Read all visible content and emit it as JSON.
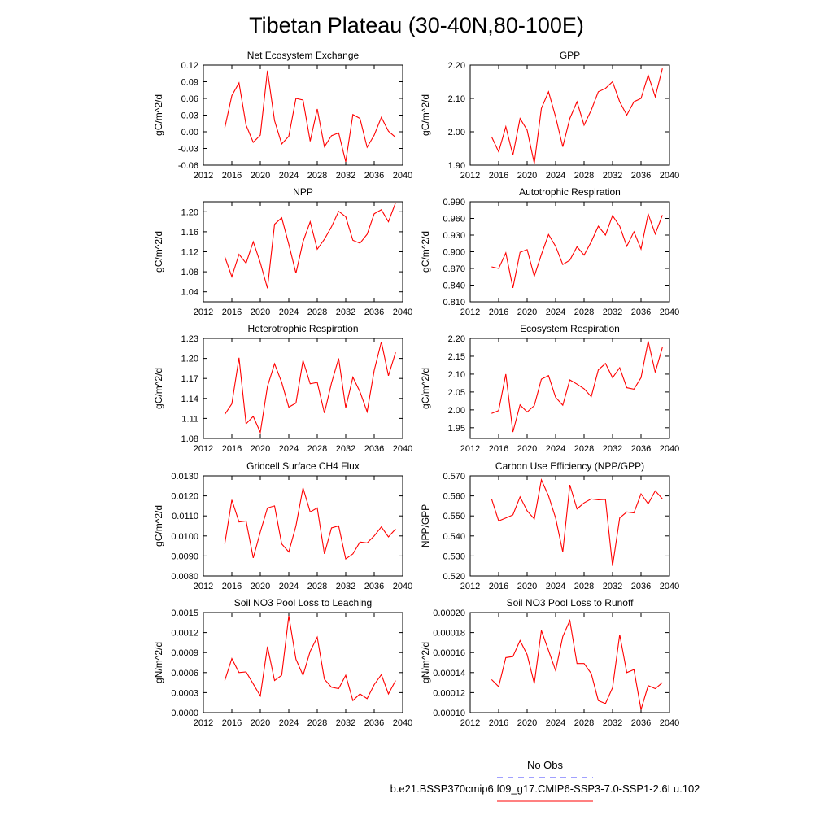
{
  "figure": {
    "title": "Tibetan Plateau (30-40N,80-100E)",
    "legend": [
      {
        "label": "No Obs",
        "style": "dashed",
        "color": "#4040ff"
      },
      {
        "label": "b.e21.BSSP370cmip6.f09_g17.CMIP6-SSP3-7.0-SSP1-2.6Lu.102",
        "style": "solid",
        "color": "#ff0000"
      }
    ]
  },
  "chart_data": [
    {
      "type": "line",
      "title": "Net Ecosystem Exchange",
      "ylabel": "gC/m^2/d",
      "xlim": [
        2012,
        2040
      ],
      "xticks": [
        "2012",
        "2016",
        "2020",
        "2024",
        "2028",
        "2032",
        "2036",
        "2040"
      ],
      "ylim": [
        -0.06,
        0.12
      ],
      "yticks": [
        "-0.06",
        "-0.03",
        "0.00",
        "0.03",
        "0.06",
        "0.09",
        "0.12"
      ],
      "series": [
        {
          "color": "#ff0000",
          "x": [
            2015,
            2016,
            2017,
            2018,
            2019,
            2020,
            2021,
            2022,
            2023,
            2024,
            2025,
            2026,
            2027,
            2028,
            2029,
            2030,
            2031,
            2032,
            2033,
            2034,
            2035,
            2036,
            2037,
            2038,
            2039
          ],
          "values": [
            0.007,
            0.065,
            0.088,
            0.012,
            -0.019,
            -0.006,
            0.11,
            0.02,
            -0.022,
            -0.008,
            0.06,
            0.057,
            -0.017,
            0.041,
            -0.027,
            -0.007,
            -0.002,
            -0.054,
            0.031,
            0.024,
            -0.028,
            -0.006,
            0.026,
            0.001,
            -0.01
          ]
        }
      ]
    },
    {
      "type": "line",
      "title": "GPP",
      "ylabel": "gC/m^2/d",
      "xlim": [
        2012,
        2040
      ],
      "xticks": [
        "2012",
        "2016",
        "2020",
        "2024",
        "2028",
        "2032",
        "2036",
        "2040"
      ],
      "ylim": [
        1.9,
        2.2
      ],
      "yticks": [
        "1.90",
        "2.00",
        "2.10",
        "2.20"
      ],
      "series": [
        {
          "color": "#ff0000",
          "x": [
            2015,
            2016,
            2017,
            2018,
            2019,
            2020,
            2021,
            2022,
            2023,
            2024,
            2025,
            2026,
            2027,
            2028,
            2029,
            2030,
            2031,
            2032,
            2033,
            2034,
            2035,
            2036,
            2037,
            2038,
            2039
          ],
          "values": [
            1.985,
            1.94,
            2.015,
            1.93,
            2.04,
            2.005,
            1.905,
            2.07,
            2.12,
            2.045,
            1.955,
            2.04,
            2.09,
            2.02,
            2.065,
            2.12,
            2.13,
            2.15,
            2.09,
            2.05,
            2.09,
            2.1,
            2.17,
            2.105,
            2.19
          ]
        }
      ]
    },
    {
      "type": "line",
      "title": "NPP",
      "ylabel": "gC/m^2/d",
      "xlim": [
        2012,
        2040
      ],
      "xticks": [
        "2012",
        "2016",
        "2020",
        "2024",
        "2028",
        "2032",
        "2036",
        "2040"
      ],
      "ylim": [
        1.02,
        1.22
      ],
      "yticks": [
        "1.04",
        "1.08",
        "1.12",
        "1.16",
        "1.20"
      ],
      "series": [
        {
          "color": "#ff0000",
          "x": [
            2015,
            2016,
            2017,
            2018,
            2019,
            2020,
            2021,
            2022,
            2023,
            2024,
            2025,
            2026,
            2027,
            2028,
            2029,
            2030,
            2031,
            2032,
            2033,
            2034,
            2035,
            2036,
            2037,
            2038,
            2039
          ],
          "values": [
            1.11,
            1.07,
            1.115,
            1.097,
            1.14,
            1.098,
            1.047,
            1.175,
            1.188,
            1.135,
            1.077,
            1.14,
            1.18,
            1.125,
            1.145,
            1.17,
            1.201,
            1.19,
            1.143,
            1.137,
            1.155,
            1.196,
            1.204,
            1.18,
            1.218
          ]
        }
      ]
    },
    {
      "type": "line",
      "title": "Autotrophic Respiration",
      "ylabel": "gC/m^2/d",
      "xlim": [
        2012,
        2040
      ],
      "xticks": [
        "2012",
        "2016",
        "2020",
        "2024",
        "2028",
        "2032",
        "2036",
        "2040"
      ],
      "ylim": [
        0.81,
        0.99
      ],
      "yticks": [
        "0.810",
        "0.840",
        "0.870",
        "0.900",
        "0.930",
        "0.960",
        "0.990"
      ],
      "series": [
        {
          "color": "#ff0000",
          "x": [
            2015,
            2016,
            2017,
            2018,
            2019,
            2020,
            2021,
            2022,
            2023,
            2024,
            2025,
            2026,
            2027,
            2028,
            2029,
            2030,
            2031,
            2032,
            2033,
            2034,
            2035,
            2036,
            2037,
            2038,
            2039
          ],
          "values": [
            0.873,
            0.87,
            0.898,
            0.835,
            0.899,
            0.904,
            0.856,
            0.895,
            0.931,
            0.91,
            0.877,
            0.885,
            0.909,
            0.894,
            0.918,
            0.946,
            0.93,
            0.965,
            0.946,
            0.91,
            0.936,
            0.905,
            0.968,
            0.932,
            0.966
          ]
        }
      ]
    },
    {
      "type": "line",
      "title": "Heterotrophic Respiration",
      "ylabel": "gC/m^2/d",
      "xlim": [
        2012,
        2040
      ],
      "xticks": [
        "2012",
        "2016",
        "2020",
        "2024",
        "2028",
        "2032",
        "2036",
        "2040"
      ],
      "ylim": [
        1.08,
        1.23
      ],
      "yticks": [
        "1.08",
        "1.11",
        "1.14",
        "1.17",
        "1.20",
        "1.23"
      ],
      "series": [
        {
          "color": "#ff0000",
          "x": [
            2015,
            2016,
            2017,
            2018,
            2019,
            2020,
            2021,
            2022,
            2023,
            2024,
            2025,
            2026,
            2027,
            2028,
            2029,
            2030,
            2031,
            2032,
            2033,
            2034,
            2035,
            2036,
            2037,
            2038,
            2039
          ],
          "values": [
            1.116,
            1.132,
            1.201,
            1.102,
            1.113,
            1.089,
            1.158,
            1.192,
            1.164,
            1.127,
            1.133,
            1.197,
            1.162,
            1.164,
            1.118,
            1.163,
            1.2,
            1.126,
            1.172,
            1.15,
            1.12,
            1.182,
            1.225,
            1.174,
            1.209
          ]
        }
      ]
    },
    {
      "type": "line",
      "title": "Ecosystem Respiration",
      "ylabel": "gC/m^2/d",
      "xlim": [
        2012,
        2040
      ],
      "xticks": [
        "2012",
        "2016",
        "2020",
        "2024",
        "2028",
        "2032",
        "2036",
        "2040"
      ],
      "ylim": [
        1.92,
        2.2
      ],
      "yticks": [
        "1.95",
        "2.00",
        "2.05",
        "2.10",
        "2.15",
        "2.20"
      ],
      "series": [
        {
          "color": "#ff0000",
          "x": [
            2015,
            2016,
            2017,
            2018,
            2019,
            2020,
            2021,
            2022,
            2023,
            2024,
            2025,
            2026,
            2027,
            2028,
            2029,
            2030,
            2031,
            2032,
            2033,
            2034,
            2035,
            2036,
            2037,
            2038,
            2039
          ],
          "values": [
            1.99,
            1.998,
            2.1,
            1.938,
            2.014,
            1.994,
            2.012,
            2.086,
            2.096,
            2.035,
            2.013,
            2.084,
            2.072,
            2.059,
            2.037,
            2.112,
            2.13,
            2.09,
            2.118,
            2.062,
            2.058,
            2.09,
            2.192,
            2.105,
            2.175
          ]
        }
      ]
    },
    {
      "type": "line",
      "title": "Gridcell Surface CH4 Flux",
      "ylabel": "gC/m^2/d",
      "xlim": [
        2012,
        2040
      ],
      "xticks": [
        "2012",
        "2016",
        "2020",
        "2024",
        "2028",
        "2032",
        "2036",
        "2040"
      ],
      "ylim": [
        0.008,
        0.013
      ],
      "yticks": [
        "0.0080",
        "0.0090",
        "0.0100",
        "0.0110",
        "0.0120",
        "0.0130"
      ],
      "series": [
        {
          "color": "#ff0000",
          "x": [
            2015,
            2016,
            2017,
            2018,
            2019,
            2020,
            2021,
            2022,
            2023,
            2024,
            2025,
            2026,
            2027,
            2028,
            2029,
            2030,
            2031,
            2032,
            2033,
            2034,
            2035,
            2036,
            2037,
            2038,
            2039
          ],
          "values": [
            0.0096,
            0.0118,
            0.0107,
            0.01075,
            0.0089,
            0.0102,
            0.0114,
            0.0115,
            0.0096,
            0.0092,
            0.0105,
            0.0124,
            0.0112,
            0.0114,
            0.0091,
            0.0104,
            0.0105,
            0.00885,
            0.0091,
            0.0097,
            0.00965,
            0.01,
            0.01045,
            0.00995,
            0.01035
          ]
        }
      ]
    },
    {
      "type": "line",
      "title": "Carbon Use Efficiency (NPP/GPP)",
      "ylabel": "NPP/GPP",
      "xlim": [
        2012,
        2040
      ],
      "xticks": [
        "2012",
        "2016",
        "2020",
        "2024",
        "2028",
        "2032",
        "2036",
        "2040"
      ],
      "ylim": [
        0.52,
        0.57
      ],
      "yticks": [
        "0.520",
        "0.530",
        "0.540",
        "0.550",
        "0.560",
        "0.570"
      ],
      "series": [
        {
          "color": "#ff0000",
          "x": [
            2015,
            2016,
            2017,
            2018,
            2019,
            2020,
            2021,
            2022,
            2023,
            2024,
            2025,
            2026,
            2027,
            2028,
            2029,
            2030,
            2031,
            2032,
            2033,
            2034,
            2035,
            2036,
            2037,
            2038,
            2039
          ],
          "values": [
            0.5585,
            0.5475,
            0.549,
            0.5505,
            0.5595,
            0.5525,
            0.5485,
            0.568,
            0.56,
            0.549,
            0.532,
            0.5655,
            0.5535,
            0.5565,
            0.5585,
            0.558,
            0.5582,
            0.525,
            0.549,
            0.552,
            0.5515,
            0.561,
            0.556,
            0.5625,
            0.5585
          ]
        }
      ]
    },
    {
      "type": "line",
      "title": "Soil NO3 Pool Loss to Leaching",
      "ylabel": "gN/m^2/d",
      "xlim": [
        2012,
        2040
      ],
      "xticks": [
        "2012",
        "2016",
        "2020",
        "2024",
        "2028",
        "2032",
        "2036",
        "2040"
      ],
      "ylim": [
        0,
        0.0015
      ],
      "yticks": [
        "0.0000",
        "0.0003",
        "0.0006",
        "0.0009",
        "0.0012",
        "0.0015"
      ],
      "series": [
        {
          "color": "#ff0000",
          "x": [
            2015,
            2016,
            2017,
            2018,
            2019,
            2020,
            2021,
            2022,
            2023,
            2024,
            2025,
            2026,
            2027,
            2028,
            2029,
            2030,
            2031,
            2032,
            2033,
            2034,
            2035,
            2036,
            2037,
            2038,
            2039
          ],
          "values": [
            0.00048,
            0.00081,
            0.0006,
            0.00061,
            0.00043,
            0.00025,
            0.00099,
            0.00048,
            0.00056,
            0.00145,
            0.0008,
            0.00056,
            0.00092,
            0.00113,
            0.0005,
            0.00038,
            0.00036,
            0.00056,
            0.00018,
            0.00028,
            0.00021,
            0.00042,
            0.00057,
            0.00028,
            0.00048
          ]
        }
      ]
    },
    {
      "type": "line",
      "title": "Soil NO3 Pool Loss to Runoff",
      "ylabel": "gN/m^2/d",
      "xlim": [
        2012,
        2040
      ],
      "xticks": [
        "2012",
        "2016",
        "2020",
        "2024",
        "2028",
        "2032",
        "2036",
        "2040"
      ],
      "ylim": [
        0.0001,
        0.0002
      ],
      "yticks": [
        "0.00010",
        "0.00012",
        "0.00014",
        "0.00016",
        "0.00018",
        "0.00020"
      ],
      "series": [
        {
          "color": "#ff0000",
          "x": [
            2015,
            2016,
            2017,
            2018,
            2019,
            2020,
            2021,
            2022,
            2023,
            2024,
            2025,
            2026,
            2027,
            2028,
            2029,
            2030,
            2031,
            2032,
            2033,
            2034,
            2035,
            2036,
            2037,
            2038,
            2039
          ],
          "values": [
            0.000133,
            0.000126,
            0.000155,
            0.000156,
            0.000172,
            0.000158,
            0.000129,
            0.000182,
            0.000162,
            0.000142,
            0.000176,
            0.000192,
            0.000149,
            0.000149,
            0.000139,
            0.000112,
            0.000109,
            0.000125,
            0.000178,
            0.00014,
            0.000143,
            0.000103,
            0.000127,
            0.000124,
            0.00013
          ]
        }
      ]
    }
  ]
}
